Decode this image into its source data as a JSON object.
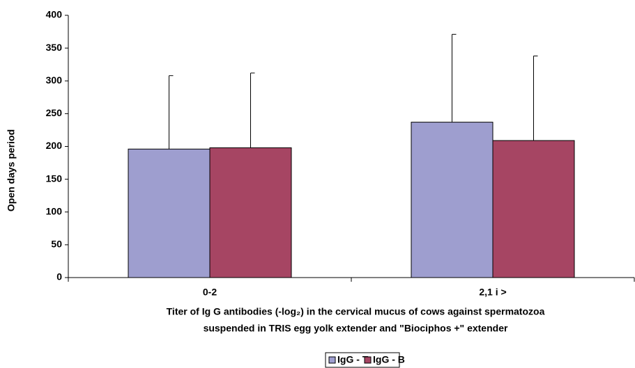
{
  "chart_data": {
    "type": "bar",
    "categories": [
      "0-2",
      "2,1 i >"
    ],
    "series": [
      {
        "name": "IgG - T",
        "color": "#9e9ecf",
        "values": [
          196,
          237
        ],
        "errors": [
          112,
          134
        ]
      },
      {
        "name": "IgG - B",
        "color": "#a64563",
        "values": [
          198,
          209
        ],
        "errors": [
          114,
          129
        ]
      }
    ],
    "y_label": "Open days period",
    "x_label": [
      "Titer of Ig G antibodies (-log₂) in the cervical mucus of cows against spermatozoa",
      "suspended in TRIS egg yolk extender and \"Biociphos +\" extender"
    ],
    "ylim": [
      0,
      400
    ],
    "yticks": [
      0,
      50,
      100,
      150,
      200,
      250,
      300,
      350,
      400
    ],
    "legend": "bottom"
  }
}
